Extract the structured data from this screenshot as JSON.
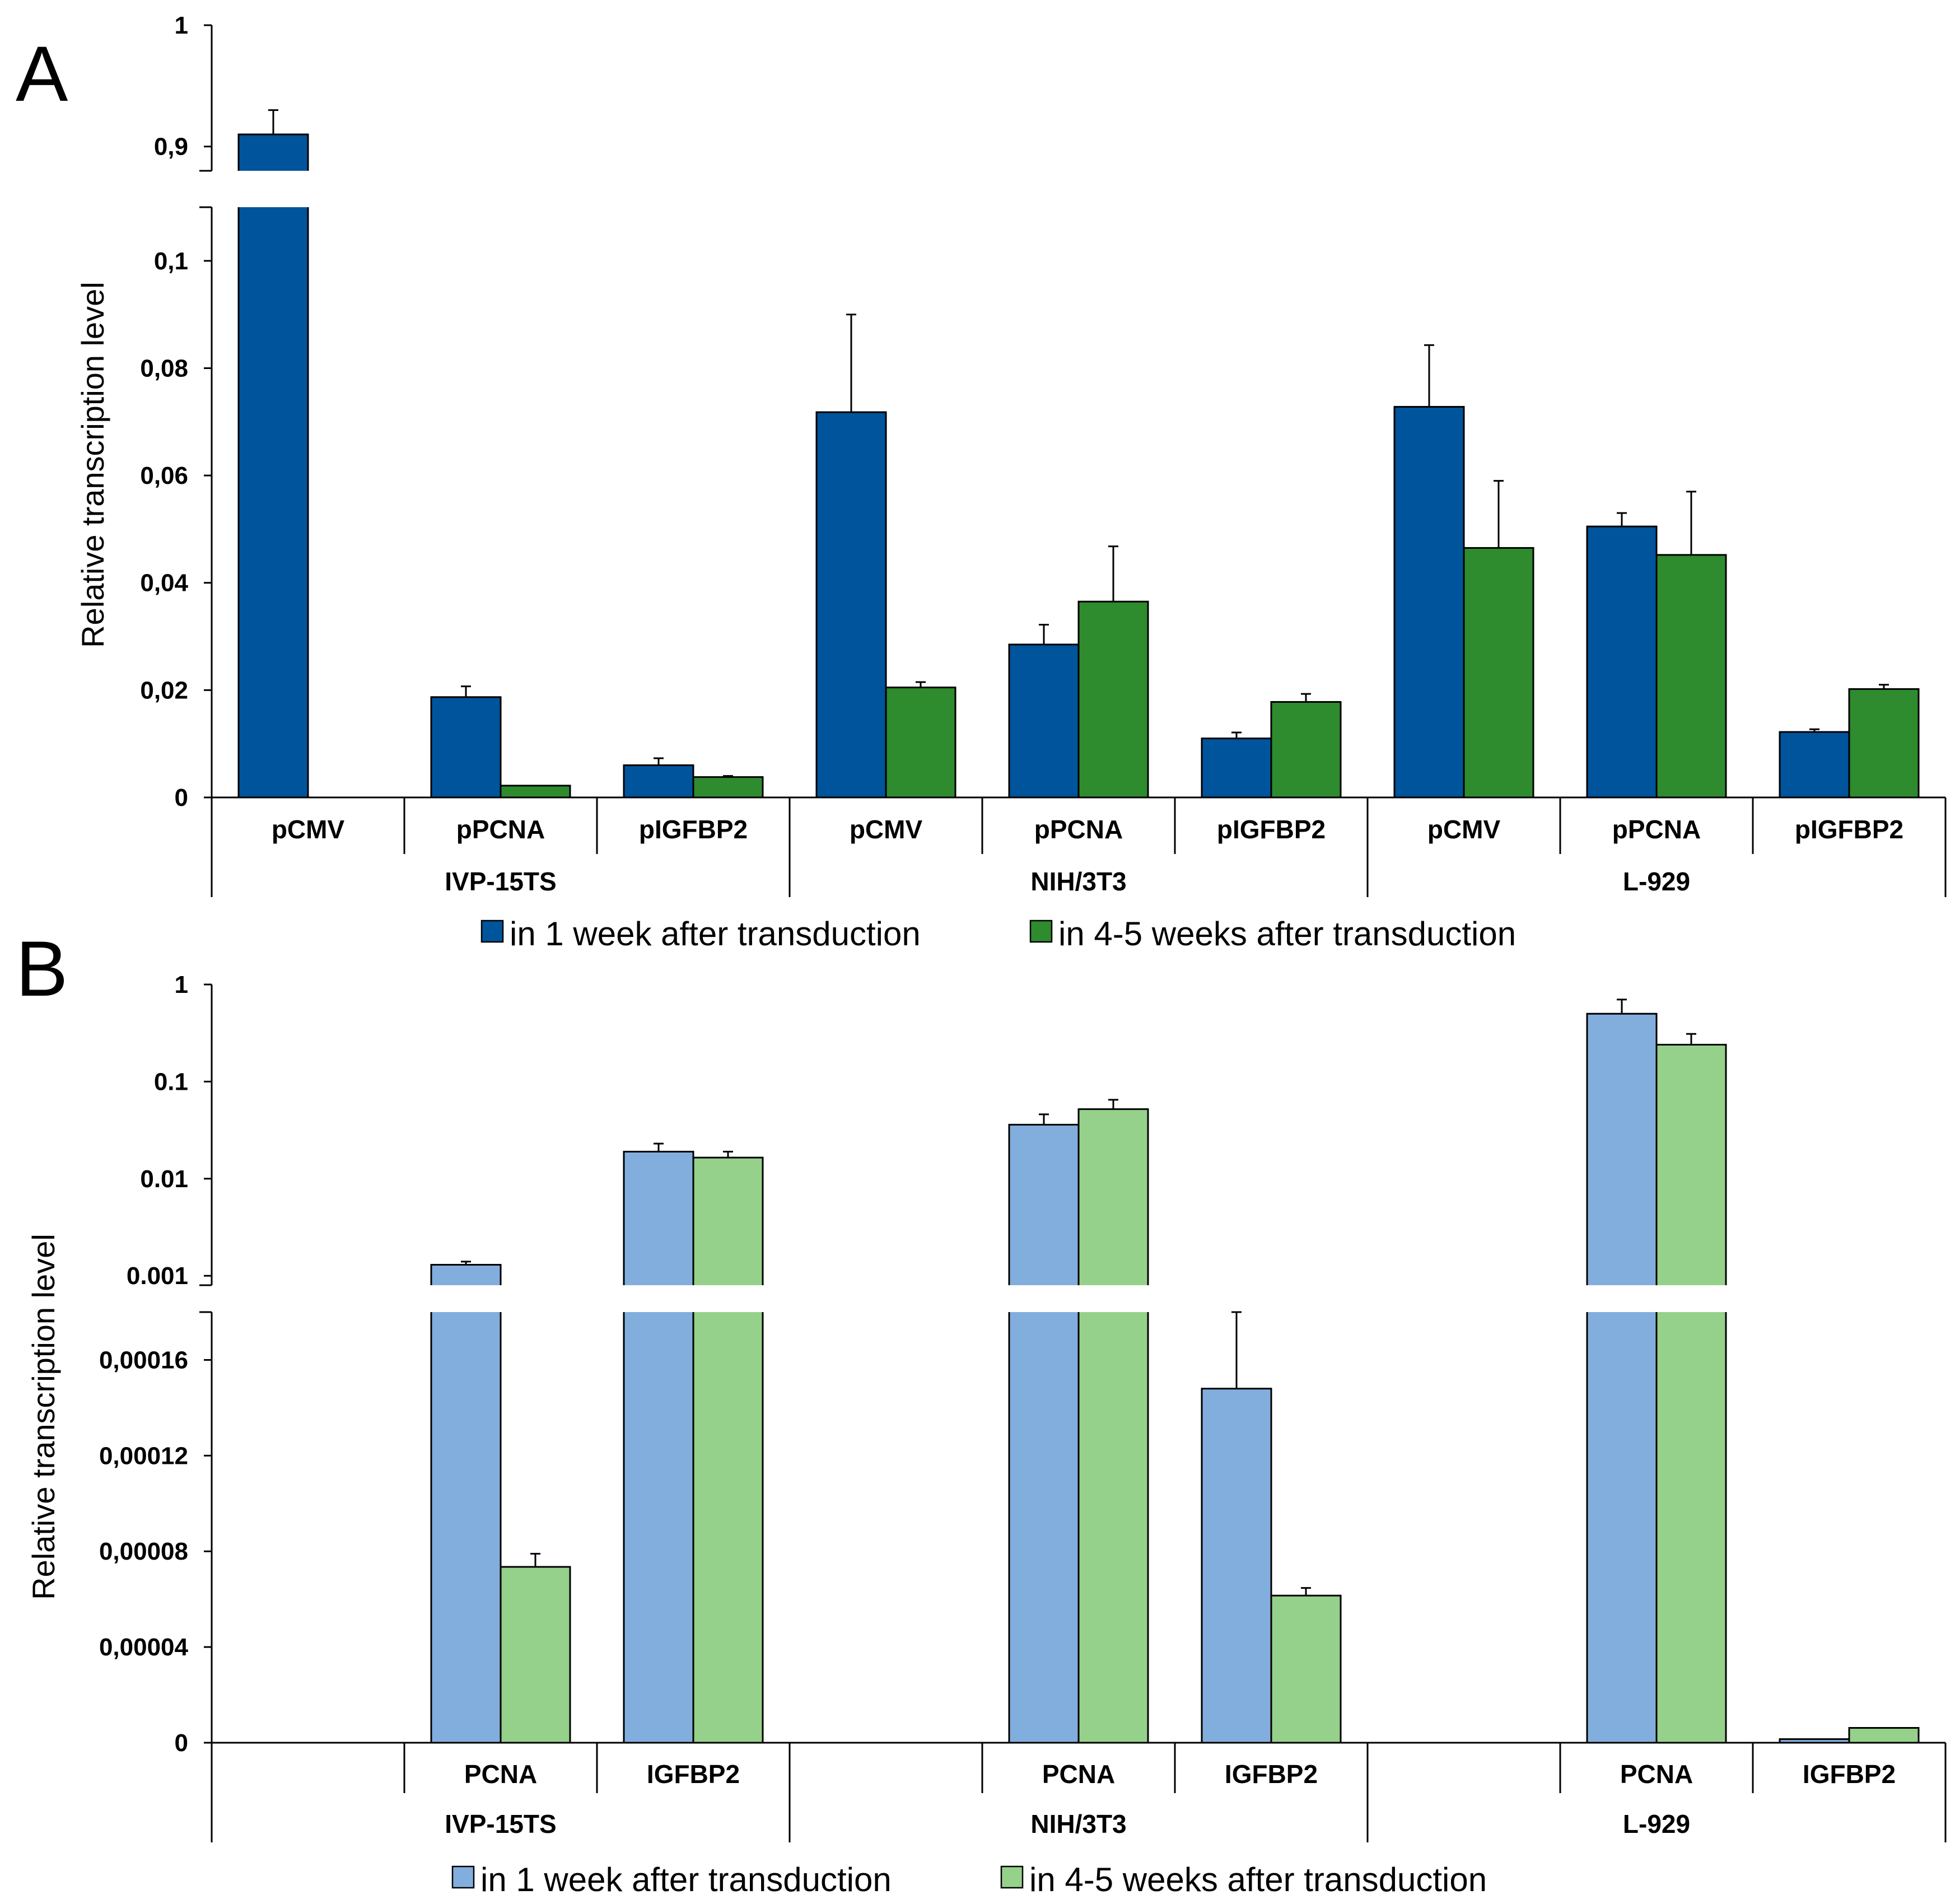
{
  "chart_data": [
    {
      "panel": "A",
      "type": "bar",
      "ylabel": "Relative transcription level",
      "axis_break": true,
      "lower_range": [
        0,
        0.11
      ],
      "upper_range": [
        0.88,
        1
      ],
      "lower_ticks": [
        "0",
        "0,02",
        "0,04",
        "0,06",
        "0,08",
        "0,1"
      ],
      "lower_tick_values": [
        0,
        0.02,
        0.04,
        0.06,
        0.08,
        0.1
      ],
      "upper_ticks": [
        "0,9",
        "1"
      ],
      "upper_tick_values": [
        0.9,
        1
      ],
      "groups": [
        {
          "name": "IVP-15TS",
          "categories": [
            "pCMV",
            "pPCNA",
            "pIGFBP2"
          ]
        },
        {
          "name": "NIH/3T3",
          "categories": [
            "pCMV",
            "pPCNA",
            "pIGFBP2"
          ]
        },
        {
          "name": "L-929",
          "categories": [
            "pCMV",
            "pPCNA",
            "pIGFBP2"
          ]
        }
      ],
      "series": [
        {
          "name": "in 1 week after transduction",
          "color": "#00549C",
          "values": [
            0.91,
            0.0187,
            0.006,
            0.0718,
            0.0285,
            0.011,
            0.0728,
            0.0505,
            0.0122
          ],
          "errors": [
            0.02,
            0.002,
            0.0013,
            0.0182,
            0.0037,
            0.0011,
            0.0115,
            0.0025,
            0.0005
          ]
        },
        {
          "name": "in 4-5 weeks after transduction",
          "color": "#2E8B2E",
          "values": [
            0,
            0.0022,
            0.0038,
            0.0205,
            0.0365,
            0.0178,
            0.0465,
            0.0452,
            0.0202
          ],
          "errors": [
            0,
            0,
            0.0002,
            0.001,
            0.0103,
            0.0015,
            0.0125,
            0.0118,
            0.0008
          ]
        }
      ]
    },
    {
      "panel": "B",
      "type": "bar",
      "ylabel": "Relative transcription level",
      "axis_break": true,
      "lower_range": [
        0,
        0.00018
      ],
      "upper_scale": "log",
      "upper_range": [
        0.0008,
        1
      ],
      "lower_ticks": [
        "0",
        "0,00004",
        "0,00008",
        "0,00012",
        "0,00016"
      ],
      "lower_tick_values": [
        0,
        4e-05,
        8e-05,
        0.00012,
        0.00016
      ],
      "upper_ticks": [
        "0.001",
        "0.01",
        "0.1",
        "1"
      ],
      "upper_tick_values": [
        0.001,
        0.01,
        0.1,
        1
      ],
      "groups": [
        {
          "name": "IVP-15TS",
          "categories": [
            "",
            "PCNA",
            "IGFBP2"
          ]
        },
        {
          "name": "NIH/3T3",
          "categories": [
            "",
            "PCNA",
            "IGFBP2"
          ]
        },
        {
          "name": "L-929",
          "categories": [
            "",
            "PCNA",
            "IGFBP2"
          ]
        }
      ],
      "series": [
        {
          "name": "in 1 week after transduction",
          "color": "#82AEDD",
          "values": [
            0,
            0.0013,
            0.019,
            0,
            0.036,
            0.000148,
            0,
            0.5,
            1.5e-06
          ],
          "errors": [
            0,
            0.0001,
            0.004,
            0,
            0.01,
            3.2e-05,
            0,
            0.2,
            0
          ]
        },
        {
          "name": "in 4-5 weeks after transduction",
          "color": "#95D18A",
          "values": [
            0,
            7.35e-05,
            0.0165,
            0,
            0.052,
            6.15e-05,
            0,
            0.24,
            6.2e-06
          ],
          "errors": [
            0,
            5.5e-06,
            0.0025,
            0,
            0.013,
            3.2e-06,
            0,
            0.07,
            0
          ]
        }
      ]
    }
  ]
}
